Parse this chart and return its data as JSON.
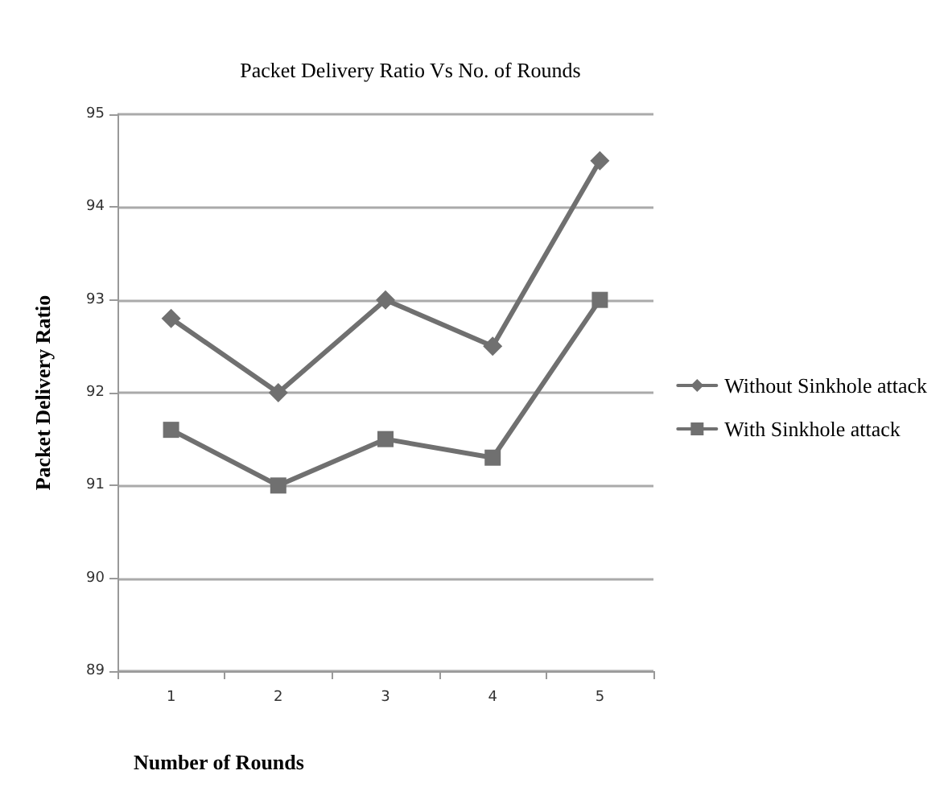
{
  "chart_data": {
    "type": "line",
    "title": "Packet Delivery Ratio Vs No. of Rounds",
    "xlabel": "Number of Rounds",
    "ylabel": "Packet Delivery Ratio",
    "categories": [
      "1",
      "2",
      "3",
      "4",
      "5"
    ],
    "series": [
      {
        "name": "Without Sinkhole attack",
        "color": "#707070",
        "marker": "diamond",
        "values": [
          92.8,
          92,
          93,
          92.5,
          94.5
        ]
      },
      {
        "name": "With Sinkhole attack",
        "color": "#707070",
        "marker": "square",
        "values": [
          91.6,
          91,
          91.5,
          91.3,
          93
        ]
      }
    ],
    "ylim": [
      89,
      95
    ],
    "yticks": [
      89,
      90,
      91,
      92,
      93,
      94,
      95
    ],
    "grid": "y",
    "legend": "right",
    "line_style": "solid"
  }
}
